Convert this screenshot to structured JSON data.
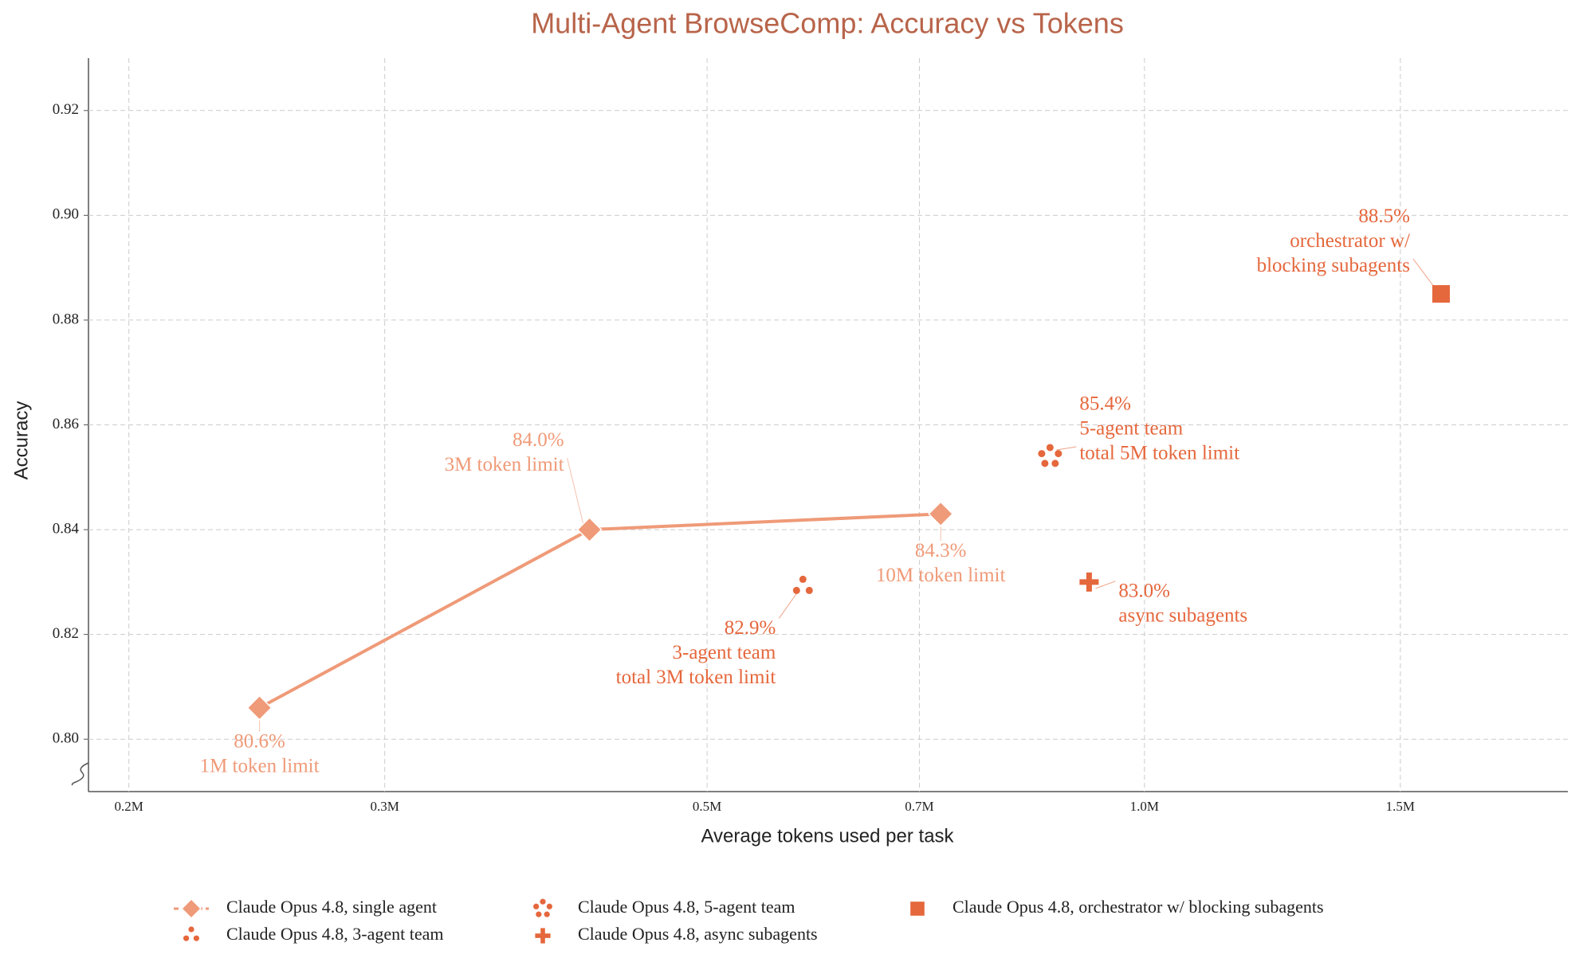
{
  "chart_data": {
    "type": "scatter",
    "title": "Multi-Agent BrowseComp: Accuracy vs Tokens",
    "x_label": "Average tokens used per task",
    "y_label": "Accuracy",
    "xscale": "log",
    "grid": true,
    "legend_position": "bottom",
    "xlim": [
      0.1876,
      1.956
    ],
    "ylim": [
      0.79,
      0.93
    ],
    "xticks": [
      {
        "value": 0.2,
        "label": "0.2M"
      },
      {
        "value": 0.3,
        "label": "0.3M"
      },
      {
        "value": 0.5,
        "label": "0.5M"
      },
      {
        "value": 0.7,
        "label": "0.7M"
      },
      {
        "value": 1.0,
        "label": "1.0M"
      },
      {
        "value": 1.5,
        "label": "1.5M"
      }
    ],
    "yticks": [
      {
        "value": 0.8,
        "label": "0.80"
      },
      0.82,
      0.84,
      0.86,
      0.88,
      {
        "value": 0.9,
        "label": "0.90"
      },
      0.92
    ],
    "series": [
      {
        "name": "Claude Opus 4.8, single agent",
        "color": "#ef9a78",
        "marker": "diamond",
        "connected": true,
        "x": [
          0.246,
          0.415,
          0.724
        ],
        "values": [
          0.806,
          0.84,
          0.843
        ],
        "value_labels": [
          "80.6%",
          "84.0%",
          "84.3%"
        ],
        "notes": [
          [
            "1M token limit"
          ],
          [
            "3M token limit"
          ],
          [
            "10M token limit"
          ]
        ]
      },
      {
        "name": "Claude Opus 4.8, 3-agent team",
        "color": "#e5673c",
        "marker": "three-dots",
        "x": [
          0.582
        ],
        "values": [
          0.829
        ],
        "value_labels": [
          "82.9%"
        ],
        "notes": [
          [
            "3-agent team",
            "total 3M token limit"
          ]
        ]
      },
      {
        "name": "Claude Opus 4.8, 5-agent team",
        "color": "#e5673c",
        "marker": "five-dots",
        "x": [
          0.861
        ],
        "values": [
          0.854
        ],
        "value_labels": [
          "85.4%"
        ],
        "notes": [
          [
            "5-agent team",
            "total 5M token limit"
          ]
        ]
      },
      {
        "name": "Claude Opus 4.8, async subagents",
        "color": "#e5673c",
        "marker": "plus",
        "x": [
          0.916
        ],
        "values": [
          0.83
        ],
        "value_labels": [
          "83.0%"
        ],
        "notes": [
          [
            "async subagents"
          ]
        ]
      },
      {
        "name": "Claude Opus 4.8, orchestrator w/ blocking subagents",
        "color": "#e5673c",
        "marker": "square",
        "x": [
          1.6
        ],
        "values": [
          0.885
        ],
        "value_labels": [
          "88.5%"
        ],
        "notes": [
          [
            "orchestrator w/",
            "blocking subagents"
          ]
        ]
      }
    ]
  }
}
